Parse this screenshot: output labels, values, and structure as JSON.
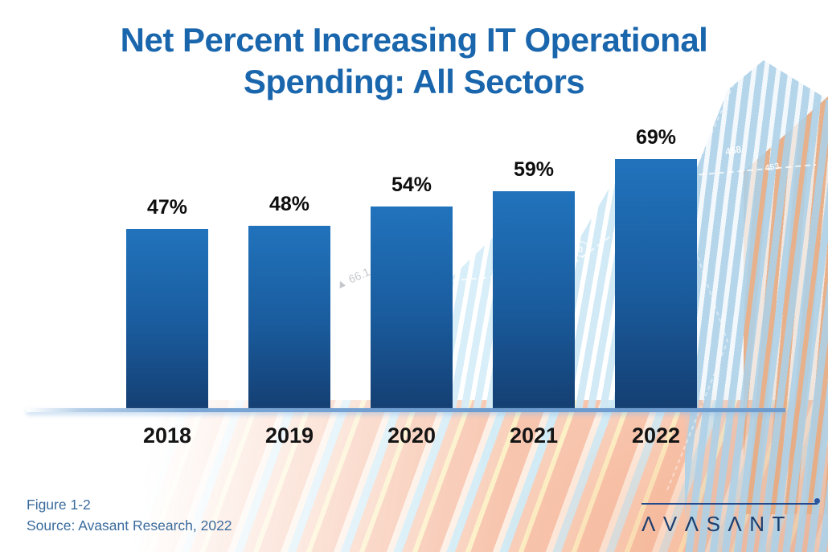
{
  "title": {
    "line1": "Net Percent Increasing IT Operational",
    "line2": "Spending: All Sectors"
  },
  "chart_data": {
    "type": "bar",
    "categories": [
      "2018",
      "2019",
      "2020",
      "2021",
      "2022"
    ],
    "values": [
      47,
      48,
      54,
      59,
      69
    ],
    "value_labels": [
      "47%",
      "48%",
      "54%",
      "59%",
      "69%"
    ],
    "title": "Net Percent Increasing IT Operational Spending: All Sectors",
    "xlabel": "",
    "ylabel": "",
    "ylim": [
      0,
      100
    ],
    "grid": false,
    "legend": "none",
    "bar_color_top": "#2173bc",
    "bar_color_bottom": "#143e71"
  },
  "caption": {
    "figure": "Figure 1-2",
    "source": "Source: Avasant Research, 2022"
  },
  "logo": {
    "text": "AVASANT",
    "display": "ΛVΛSΛNT"
  },
  "background_decor": {
    "label_1": "458",
    "label_2": "453",
    "label_3": "▲ 66.1",
    "marker_zero": "0"
  },
  "colors": {
    "title_blue": "#1a66ad",
    "bar_top": "#2173bc",
    "bar_bottom": "#143e71",
    "axis_blue": "#6e9ccf",
    "caption_blue": "#3a6b9d",
    "logo_navy": "#1d3f6e",
    "background_tan": "#cdb494",
    "stripe_salmon": "#f6bba0",
    "stripe_light_blue": "#c6e6f3"
  }
}
